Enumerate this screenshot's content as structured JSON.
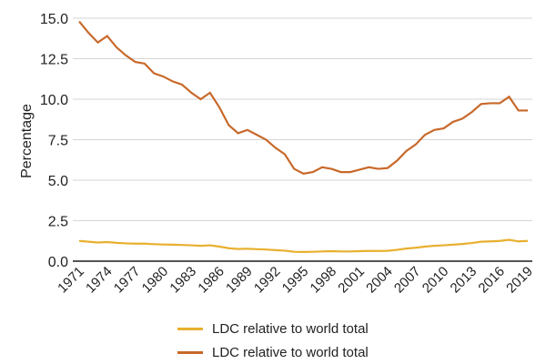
{
  "chart_data": {
    "type": "line",
    "title": "",
    "xlabel": "",
    "ylabel": "Percentage",
    "ylim": [
      0,
      15
    ],
    "yticks": [
      "0.0",
      "2.5",
      "5.0",
      "7.5",
      "10.0",
      "12.5",
      "15.0"
    ],
    "xticks": [
      "1971",
      "1974",
      "1977",
      "1980",
      "1983",
      "1986",
      "1989",
      "1992",
      "1995",
      "1998",
      "2001",
      "2004",
      "2007",
      "2010",
      "2013",
      "2016",
      "2019"
    ],
    "grid": true,
    "legend": "bottom",
    "x": [
      1971,
      1972,
      1973,
      1974,
      1975,
      1976,
      1977,
      1978,
      1979,
      1980,
      1981,
      1982,
      1983,
      1984,
      1985,
      1986,
      1987,
      1988,
      1989,
      1990,
      1991,
      1992,
      1993,
      1994,
      1995,
      1996,
      1997,
      1998,
      1999,
      2000,
      2001,
      2002,
      2003,
      2004,
      2005,
      2006,
      2007,
      2008,
      2009,
      2010,
      2011,
      2012,
      2013,
      2014,
      2015,
      2016,
      2017,
      2018,
      2019
    ],
    "series": [
      {
        "name": "LDC relative to world total",
        "color": "#e8b02f",
        "values": [
          1.25,
          1.2,
          1.15,
          1.18,
          1.13,
          1.1,
          1.08,
          1.08,
          1.05,
          1.03,
          1.02,
          1.0,
          0.98,
          0.95,
          0.98,
          0.9,
          0.8,
          0.75,
          0.77,
          0.74,
          0.72,
          0.68,
          0.65,
          0.58,
          0.57,
          0.58,
          0.6,
          0.62,
          0.6,
          0.6,
          0.62,
          0.63,
          0.63,
          0.64,
          0.7,
          0.78,
          0.83,
          0.9,
          0.95,
          0.98,
          1.02,
          1.06,
          1.12,
          1.2,
          1.22,
          1.25,
          1.32,
          1.22,
          1.25
        ]
      },
      {
        "name": "LDC relative to world total",
        "color": "#c8692a",
        "values": [
          14.8,
          14.1,
          13.5,
          13.9,
          13.2,
          12.7,
          12.3,
          12.2,
          11.6,
          11.4,
          11.1,
          10.9,
          10.4,
          10.0,
          10.4,
          9.5,
          8.4,
          7.9,
          8.1,
          7.8,
          7.5,
          7.0,
          6.6,
          5.7,
          5.4,
          5.5,
          5.8,
          5.7,
          5.5,
          5.5,
          5.65,
          5.8,
          5.7,
          5.75,
          6.2,
          6.8,
          7.2,
          7.8,
          8.1,
          8.2,
          8.6,
          8.8,
          9.2,
          9.7,
          9.75,
          9.75,
          10.15,
          9.3,
          9.3
        ]
      }
    ]
  }
}
